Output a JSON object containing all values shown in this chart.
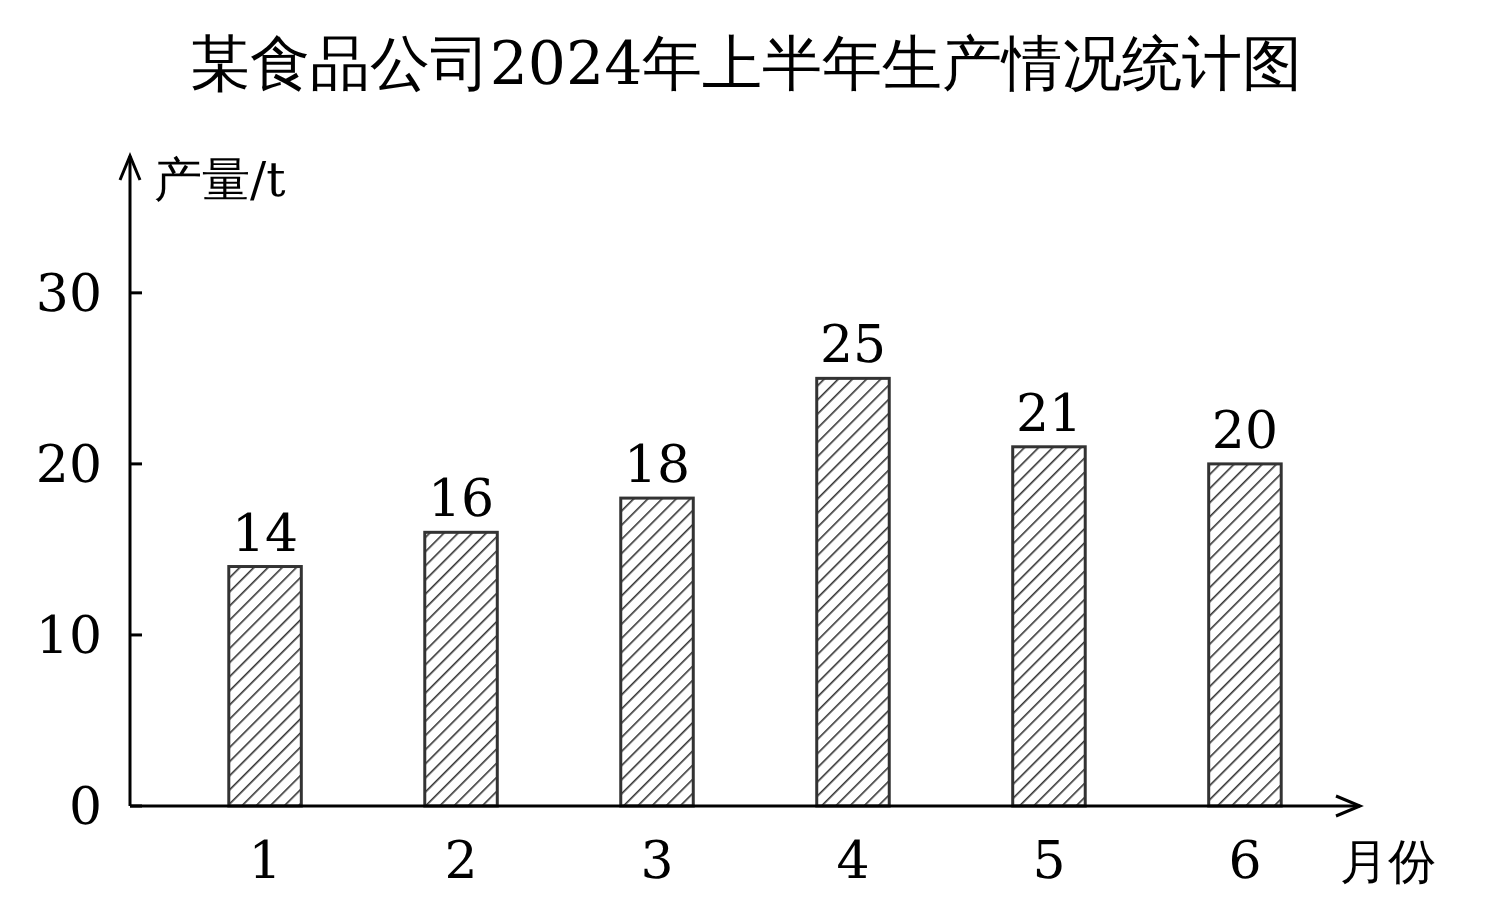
{
  "chart_data": {
    "type": "bar",
    "title": "某食品公司2024年上半年生产情况统计图",
    "xlabel": "月份",
    "ylabel": "产量/t",
    "categories": [
      "1",
      "2",
      "3",
      "4",
      "5",
      "6"
    ],
    "values": [
      14,
      16,
      18,
      25,
      21,
      20
    ],
    "color": "#333333",
    "ylim": [
      0,
      38
    ],
    "yticks": [
      0,
      10,
      20,
      30
    ],
    "data_labels": true,
    "grid": false
  }
}
